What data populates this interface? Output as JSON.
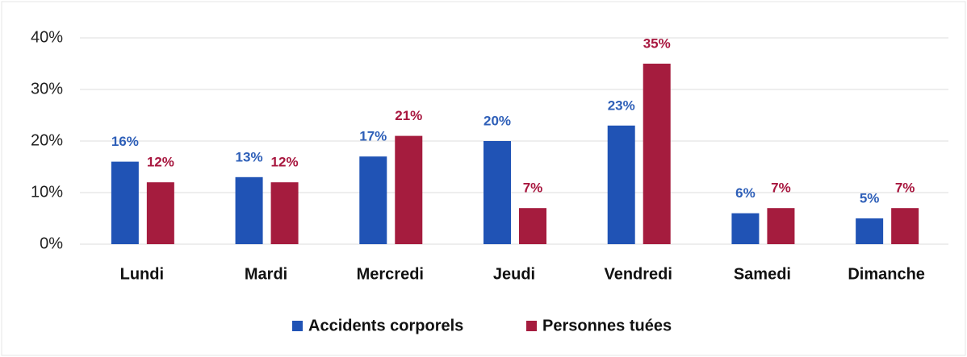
{
  "chart_data": {
    "type": "bar",
    "categories": [
      "Lundi",
      "Mardi",
      "Mercredi",
      "Jeudi",
      "Vendredi",
      "Samedi",
      "Dimanche"
    ],
    "series": [
      {
        "name": "Accidents corporels",
        "color": "#2053b5",
        "label_color": "#2e5fb8",
        "values": [
          16,
          13,
          17,
          20,
          23,
          6,
          5
        ],
        "value_labels": [
          "16%",
          "13%",
          "17%",
          "20%",
          "23%",
          "6%",
          "5%"
        ]
      },
      {
        "name": "Personnes tuées",
        "color": "#a51c3e",
        "label_color": "#a8173f",
        "values": [
          12,
          12,
          21,
          7,
          35,
          7,
          7
        ],
        "value_labels": [
          "12%",
          "12%",
          "21%",
          "7%",
          "35%",
          "7%",
          "7%"
        ]
      }
    ],
    "ylim": [
      0,
      40
    ],
    "yticks": [
      {
        "value": 0,
        "label": "0%"
      },
      {
        "value": 10,
        "label": "10%"
      },
      {
        "value": 20,
        "label": "20%"
      },
      {
        "value": 30,
        "label": "30%"
      },
      {
        "value": 40,
        "label": "40%"
      }
    ],
    "grid": true,
    "legend": "bottom"
  }
}
